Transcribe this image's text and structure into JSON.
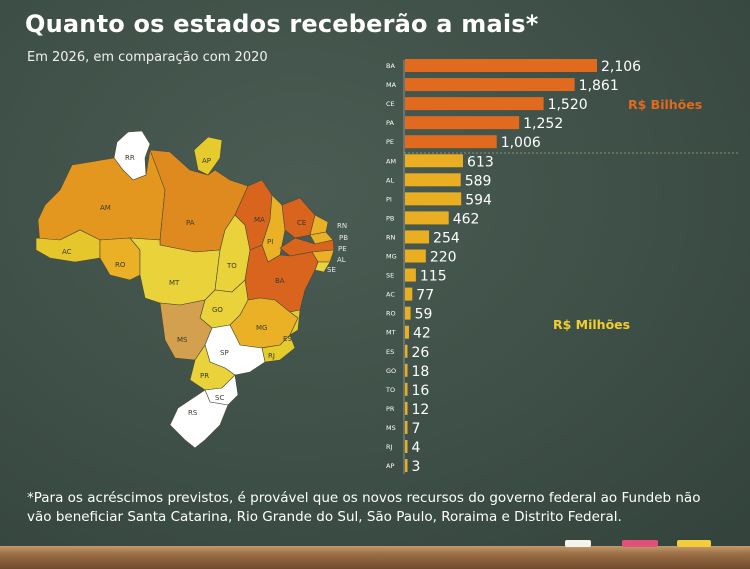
{
  "header": {
    "title": "Quanto os estados receberão a mais*",
    "subtitle": "Em 2026, em comparação com 2020"
  },
  "units": {
    "billions": "R$ Bilhões",
    "millions": "R$ Milhões"
  },
  "footnote": {
    "line1": "*Para os acréscimos previstos, é provável que os novos recursos do governo federal ao Fundeb não",
    "line2": "vão beneficiar Santa Catarina, Rio Grande do Sul, São Paulo, Roraima e Distrito Federal."
  },
  "colors": {
    "orange": "#e06a1e",
    "yellow": "#eaae23",
    "light_yellow": "#e5cb2c",
    "white": "#ffffff"
  },
  "chart_data": {
    "type": "bar",
    "orientation": "horizontal",
    "title": "Quanto os estados receberão a mais*",
    "subtitle": "Em 2026, em comparação com 2020",
    "groups": [
      {
        "unit": "R$ Bilhões",
        "categories": [
          "BA",
          "MA",
          "CE",
          "PA",
          "PE"
        ],
        "values": [
          2.106,
          1.861,
          1.52,
          1.252,
          1.006
        ],
        "labels": [
          "2,106",
          "1,861",
          "1,520",
          "1,252",
          "1,006"
        ]
      },
      {
        "unit": "R$ Milhões",
        "categories": [
          "AM",
          "AL",
          "PI",
          "PB",
          "RN",
          "MG",
          "SE",
          "AC",
          "RO",
          "MT",
          "ES",
          "GO",
          "TO",
          "PR",
          "MS",
          "RJ",
          "AP"
        ],
        "values": [
          613,
          589,
          594,
          462,
          254,
          220,
          115,
          77,
          59,
          42,
          26,
          18,
          16,
          12,
          7,
          4,
          3
        ],
        "labels": [
          "613",
          "589",
          "594",
          "462",
          "254",
          "220",
          "115",
          "77",
          "59",
          "42",
          "26",
          "18",
          "16",
          "12",
          "7",
          "4",
          "3"
        ]
      }
    ]
  },
  "map": {
    "states": [
      {
        "code": "RR",
        "color": "#ffffff"
      },
      {
        "code": "AP",
        "color": "#e5cb2c"
      },
      {
        "code": "AM",
        "color": "#e3971f"
      },
      {
        "code": "PA",
        "color": "#de8a1e"
      },
      {
        "code": "AC",
        "color": "#e5c72c"
      },
      {
        "code": "RO",
        "color": "#eab126"
      },
      {
        "code": "MT",
        "color": "#e9d23a"
      },
      {
        "code": "TO",
        "color": "#e9d23a"
      },
      {
        "code": "MA",
        "color": "#d8641e"
      },
      {
        "code": "PI",
        "color": "#eab126"
      },
      {
        "code": "CE",
        "color": "#d8641e"
      },
      {
        "code": "BA",
        "color": "#d8641e"
      },
      {
        "code": "GO",
        "color": "#e9d23a"
      },
      {
        "code": "MG",
        "color": "#eab126"
      },
      {
        "code": "MS",
        "color": "#d2a04e"
      },
      {
        "code": "SP",
        "color": "#ffffff"
      },
      {
        "code": "PR",
        "color": "#e9d23a"
      },
      {
        "code": "SC",
        "color": "#ffffff"
      },
      {
        "code": "RS",
        "color": "#ffffff"
      },
      {
        "code": "RJ",
        "color": "#e5cb2c"
      },
      {
        "code": "ES",
        "color": "#e5cb2c"
      },
      {
        "code": "RN",
        "color": "#eab126"
      },
      {
        "code": "PB",
        "color": "#eab126"
      },
      {
        "code": "PE",
        "color": "#d8641e"
      },
      {
        "code": "AL",
        "color": "#eab126"
      },
      {
        "code": "SE",
        "color": "#e9d23a"
      }
    ]
  }
}
